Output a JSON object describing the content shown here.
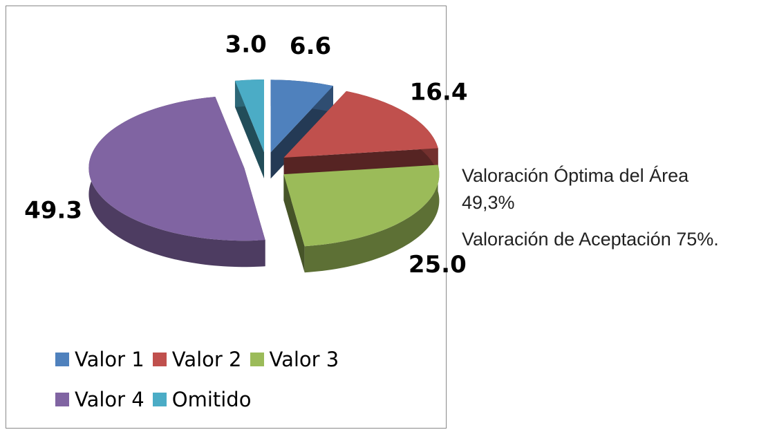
{
  "chart_data": {
    "type": "pie",
    "categories": [
      "Valor 1",
      "Valor 2",
      "Valor 3",
      "Valor 4",
      "Omitido"
    ],
    "values": [
      6.6,
      16.4,
      25.0,
      49.3,
      3.0
    ],
    "value_labels": [
      "6.6",
      "16.4",
      "25.0",
      "49.3",
      "3.0"
    ],
    "colors": [
      "#4f81bd",
      "#c0504d",
      "#9bbb59",
      "#8064a2",
      "#4bacc6"
    ],
    "legend": "bottom",
    "annotations": [
      "Valoración Óptima del Área 49,3%",
      "Valoración de Aceptación 75%."
    ]
  }
}
